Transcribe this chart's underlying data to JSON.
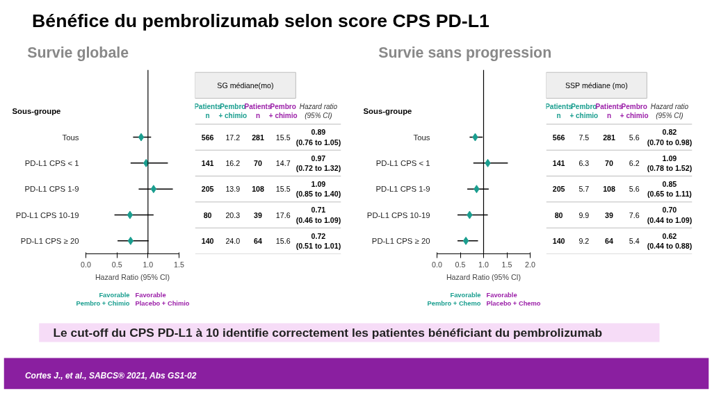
{
  "chart_data": [
    {
      "type": "scatter",
      "orientation": "horizontal",
      "title": "Survie globale",
      "ylabel": "Sous-groupe",
      "xlabel": "Hazard Ratio (95% CI)",
      "categories": [
        "Tous",
        "PD-L1 CPS < 1",
        "PD-L1 CPS 1-9",
        "PD-L1 CPS 10-19",
        "PD-L1 CPS ≥ 20"
      ],
      "values": [
        0.89,
        0.97,
        1.09,
        0.71,
        0.72
      ],
      "errors": [
        [
          0.76,
          1.05
        ],
        [
          0.72,
          1.32
        ],
        [
          0.85,
          1.4
        ],
        [
          0.46,
          1.09
        ],
        [
          0.51,
          1.01
        ]
      ],
      "value_labels": [
        "0.89\n(0.76 to 1.05)",
        "0.97\n(0.72 to 1.32)",
        "1.09\n(0.85 to 1.40)",
        "0.71\n(0.46 to 1.09)",
        "0.72\n(0.51 to 1.01)"
      ],
      "color": "#1a9e8f",
      "marker": "diamond",
      "grid": false,
      "xlim": [
        0,
        1.5
      ],
      "xticks": [
        {
          "value": 0,
          "label": "0.0"
        },
        {
          "value": 0.5,
          "label": "0.5"
        },
        {
          "value": 1,
          "label": "1.0"
        },
        {
          "value": 1.5,
          "label": "1.5"
        }
      ],
      "ref_lines": [
        {
          "axis": "x",
          "value": 1
        }
      ],
      "annotations": [
        "SG médiane(mo)",
        "Patients\nn",
        "Pembro\n+ chimio",
        "Patients\nn",
        "Pembro\n+ chimio",
        "Hazard ratio\n(95% CI)",
        "566",
        "17.2",
        "281",
        "15.5",
        "141",
        "16.2",
        "70",
        "14.7",
        "205",
        "13.9",
        "108",
        "15.5",
        "80",
        "20.3",
        "39",
        "17.6",
        "140",
        "24.0",
        "64",
        "15.6",
        "Favorable\nPembro + Chimio",
        "Favorable\nPlacebo + Chimio",
        "Bénéfice du pembrolizumab selon score CPS PD-L1",
        "Le cut-off du CPS PD-L1 à 10 identifie correctement les patientes bénéficiant du pembrolizumab",
        "Cortes J., et al., SABCS® 2021, Abs GS1-02"
      ]
    },
    {
      "type": "scatter",
      "orientation": "horizontal",
      "title": "Survie sans progression",
      "ylabel": "Sous-groupe",
      "xlabel": "Hazard Ratio (95% CI)",
      "categories": [
        "Tous",
        "PD-L1 CPS < 1",
        "PD-L1 CPS 1-9",
        "PD-L1 CPS 10-19",
        "PD-L1 CPS ≥ 20"
      ],
      "values": [
        0.82,
        1.09,
        0.85,
        0.7,
        0.62
      ],
      "errors": [
        [
          0.7,
          0.98
        ],
        [
          0.78,
          1.52
        ],
        [
          0.65,
          1.11
        ],
        [
          0.44,
          1.09
        ],
        [
          0.44,
          0.88
        ]
      ],
      "value_labels": [
        "0.82\n(0.70 to 0.98)",
        "1.09\n(0.78 to 1.52)",
        "0.85\n(0.65 to 1.11)",
        "0.70\n(0.44 to 1.09)",
        "0.62\n(0.44 to 0.88)"
      ],
      "color": "#1a9e8f",
      "marker": "diamond",
      "grid": false,
      "xlim": [
        0,
        2
      ],
      "xticks": [
        {
          "value": 0,
          "label": "0.0"
        },
        {
          "value": 0.5,
          "label": "0.5"
        },
        {
          "value": 1,
          "label": "1.0"
        },
        {
          "value": 1.5,
          "label": "1.5"
        },
        {
          "value": 2,
          "label": "2.0"
        }
      ],
      "ref_lines": [
        {
          "axis": "x",
          "value": 1
        }
      ],
      "annotations": [
        "SSP médiane (mo)",
        "Patients\nn",
        "Pembro\n+ chimio",
        "Patients\nn",
        "Pembro\n+ chimio",
        "Hazard ratio\n(95% CI)",
        "566",
        "7.5",
        "281",
        "5.6",
        "141",
        "6.3",
        "70",
        "6.2",
        "205",
        "5.7",
        "108",
        "5.6",
        "80",
        "9.9",
        "39",
        "7.6",
        "140",
        "9.2",
        "64",
        "5.4",
        "Favorable\nPembro + Chemo",
        "Favorable\nPlacebo + Chemo"
      ]
    }
  ]
}
